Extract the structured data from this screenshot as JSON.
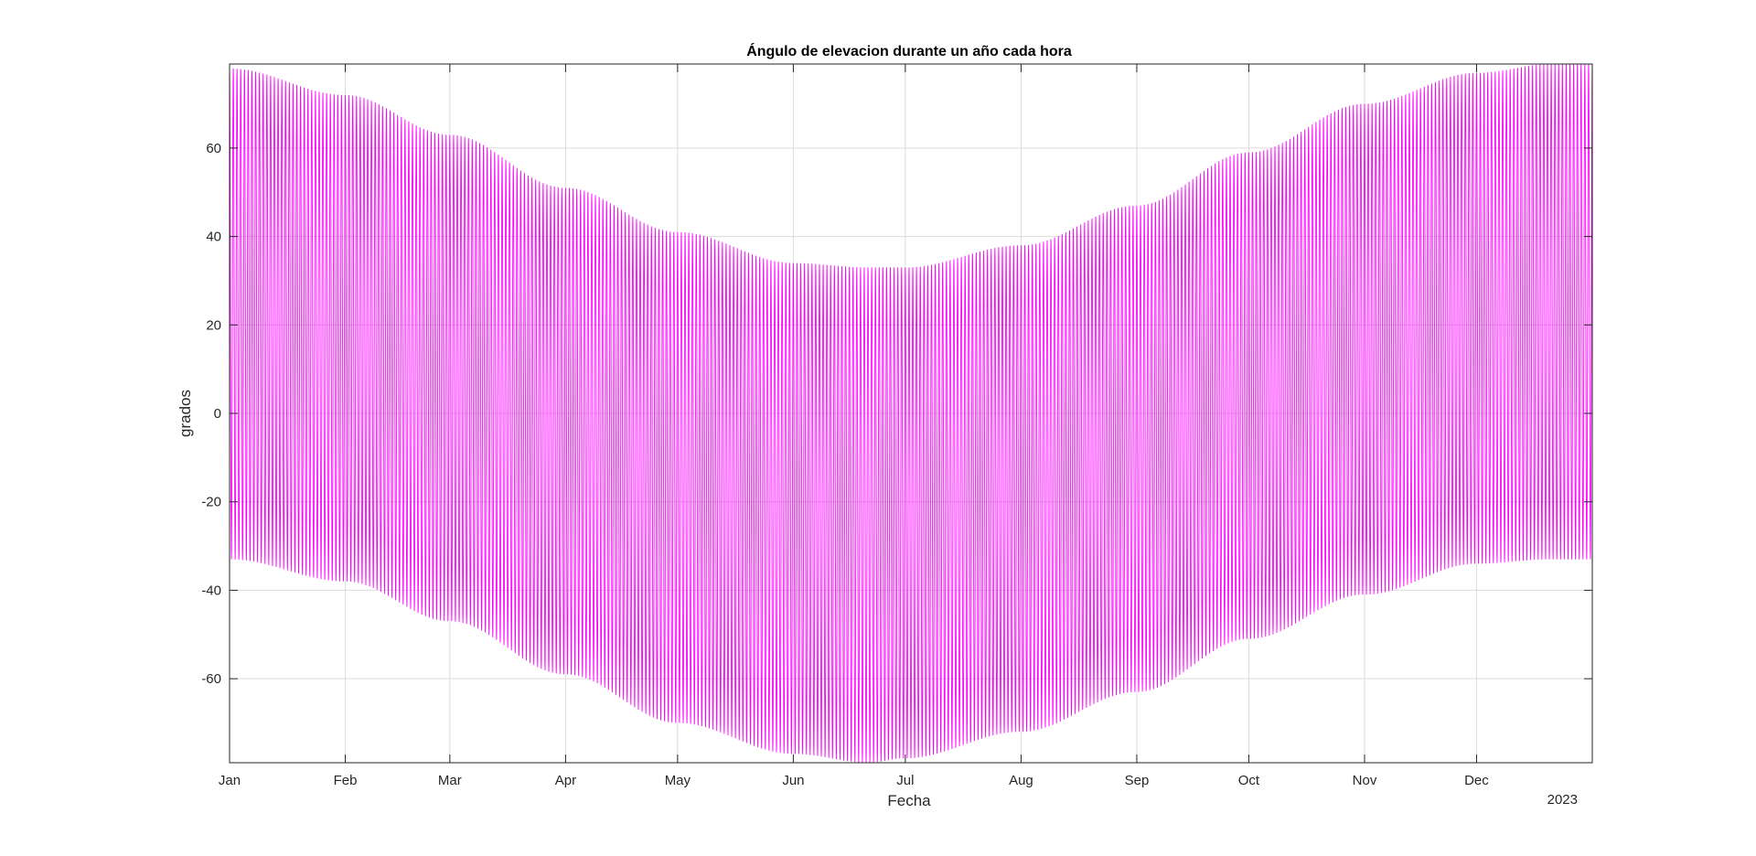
{
  "chart_data": {
    "type": "line",
    "title": "Ángulo de elevacion durante un año cada hora",
    "xlabel": "Fecha",
    "ylabel": "grados",
    "x_secondary_label": "2023",
    "x_ticks": [
      "Jan",
      "Feb",
      "Mar",
      "Apr",
      "May",
      "Jun",
      "Jul",
      "Aug",
      "Sep",
      "Oct",
      "Nov",
      "Dec"
    ],
    "x_tick_days": [
      1,
      32,
      60,
      91,
      121,
      152,
      182,
      213,
      244,
      274,
      305,
      335
    ],
    "xlim_days": [
      1,
      366
    ],
    "y_ticks": [
      -60,
      -40,
      -20,
      0,
      20,
      40,
      60
    ],
    "ylim": [
      -79,
      79
    ],
    "grid": true,
    "series": [
      {
        "color": "#FF00FF",
        "sampling": "hourly",
        "envelope_max": {
          "dates": [
            "Jan 1",
            "Feb 1",
            "Mar 1",
            "Apr 1",
            "May 1",
            "Jun 1",
            "Jun 21",
            "Jul 1",
            "Aug 1",
            "Sep 1",
            "Oct 1",
            "Nov 1",
            "Dec 1",
            "Dec 21",
            "Dec 31"
          ],
          "values": [
            78,
            72,
            63,
            51,
            41,
            34,
            33,
            33,
            38,
            47,
            59,
            70,
            77,
            79,
            79
          ]
        },
        "envelope_min": {
          "dates": [
            "Jan 1",
            "Feb 1",
            "Mar 1",
            "Apr 1",
            "May 1",
            "Jun 1",
            "Jun 21",
            "Jul 1",
            "Aug 1",
            "Sep 1",
            "Oct 1",
            "Nov 1",
            "Dec 1",
            "Dec 21",
            "Dec 31"
          ],
          "values": [
            -33,
            -38,
            -47,
            -59,
            -70,
            -77,
            -79,
            -78,
            -72,
            -63,
            -51,
            -41,
            -34,
            -33,
            -33
          ]
        }
      }
    ]
  }
}
